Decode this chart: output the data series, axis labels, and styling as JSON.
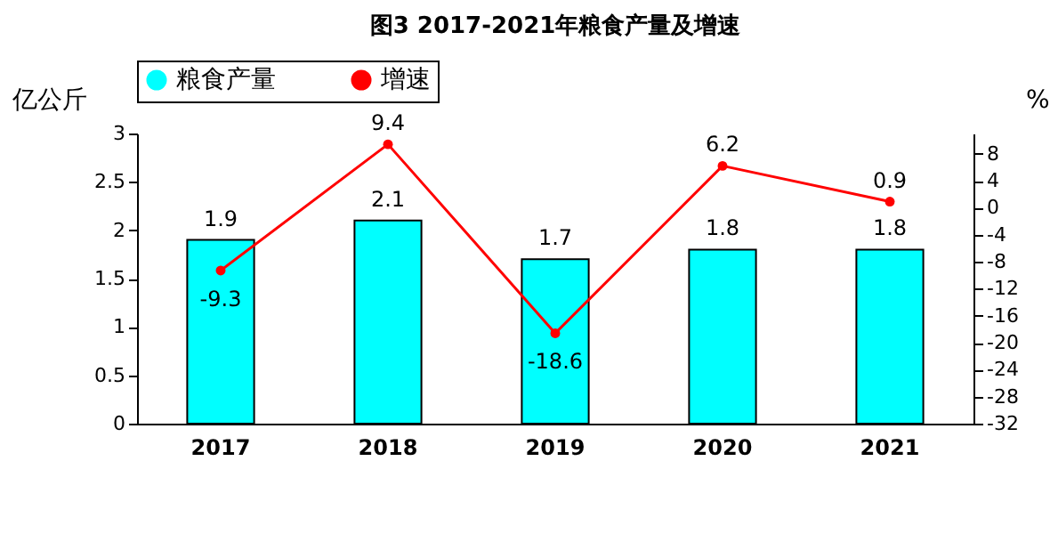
{
  "chart_data": {
    "type": "bar",
    "title": "图3  2017-2021年粮食产量及增速",
    "ylabel": "亿公斤",
    "y2label": "%",
    "categories": [
      "2017",
      "2018",
      "2019",
      "2020",
      "2021"
    ],
    "series": [
      {
        "name": "粮食产量",
        "color": "#00ffff",
        "values": [
          1.9,
          2.1,
          1.7,
          1.8,
          1.8
        ]
      },
      {
        "name": "增速",
        "type": "line",
        "axis": "y2",
        "color": "#ff0000",
        "values": [
          -9.3,
          9.4,
          -18.6,
          6.2,
          0.9
        ]
      }
    ],
    "ylim": [
      0,
      3
    ],
    "yticks": [
      0,
      0.5,
      1,
      1.5,
      2,
      2.5,
      3
    ],
    "y2lim": [
      -32,
      11
    ],
    "y2ticks": [
      8,
      4,
      0,
      -4,
      -8,
      -12,
      -16,
      -20,
      -24,
      -28,
      -32
    ],
    "data_labels": true,
    "legend": "top",
    "grid": false,
    "marker": "circle",
    "line_style": "solid"
  }
}
